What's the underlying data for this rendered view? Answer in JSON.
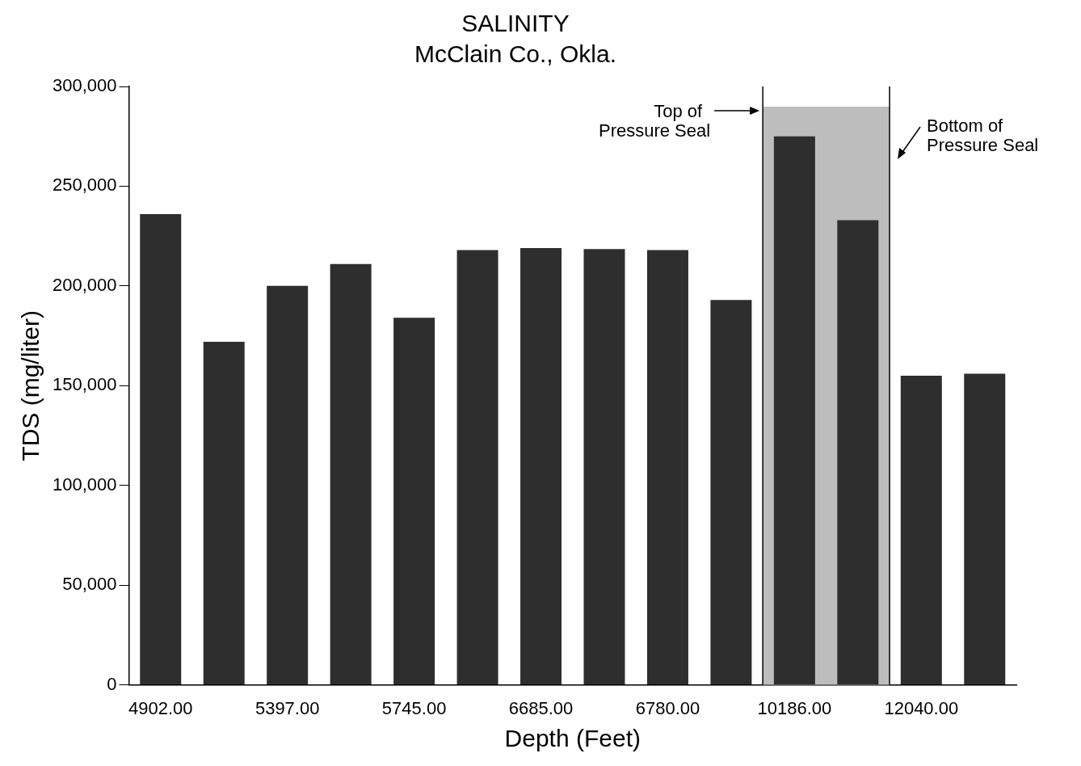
{
  "chart_data": {
    "type": "bar",
    "title": "SALINITY",
    "subtitle": "McClain Co., Okla.",
    "xlabel": "Depth (Feet)",
    "ylabel": "TDS (mg/liter)",
    "categories": [
      "4902.00",
      null,
      "5397.00",
      null,
      "5745.00",
      null,
      "6685.00",
      null,
      "6780.00",
      null,
      "10186.00",
      null,
      "12040.00",
      null
    ],
    "values": [
      236000,
      172000,
      200000,
      211000,
      184000,
      218000,
      219000,
      218500,
      218000,
      193000,
      275000,
      233000,
      155000,
      156000
    ],
    "color": "#2e2e2e",
    "ylim": [
      0,
      300000
    ],
    "yticks": [
      {
        "value": 0,
        "label": "0"
      },
      {
        "value": 50000,
        "label": "50,000"
      },
      {
        "value": 100000,
        "label": "100,000"
      },
      {
        "value": 150000,
        "label": "150,000"
      },
      {
        "value": 200000,
        "label": "200,000"
      },
      {
        "value": 250000,
        "label": "250,000"
      },
      {
        "value": 300000,
        "label": "300,000"
      }
    ],
    "annotations": [
      "Top of\nPressure Seal",
      "Bottom of\nPressure Seal"
    ],
    "grid": false,
    "legend": false
  }
}
